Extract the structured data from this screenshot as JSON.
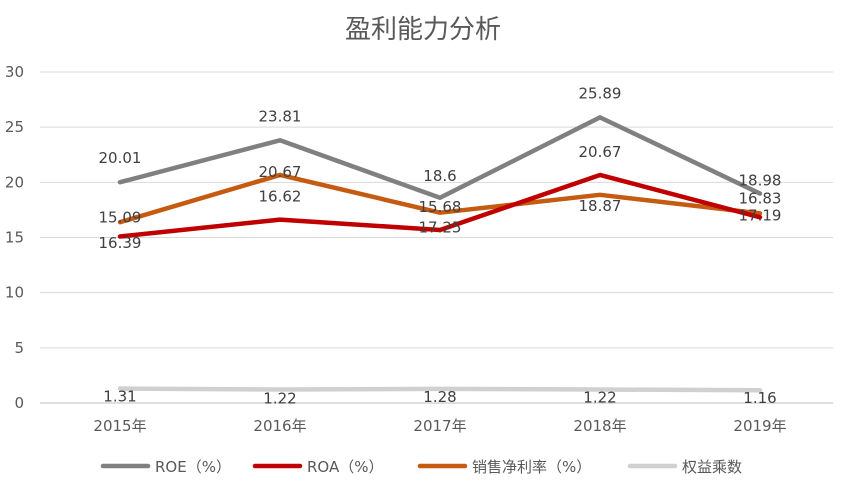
{
  "chart_data": {
    "type": "line",
    "title": "盈利能力分析",
    "categories": [
      "2015年",
      "2016年",
      "2017年",
      "2018年",
      "2019年"
    ],
    "ylim": [
      0,
      30
    ],
    "yticks": [
      0,
      5,
      10,
      15,
      20,
      25,
      30
    ],
    "grid": true,
    "legend": "bottom",
    "series": [
      {
        "name": "ROE（%）",
        "color": "#808080",
        "values": [
          20.01,
          23.81,
          18.6,
          25.89,
          18.98
        ]
      },
      {
        "name": "ROA（%）",
        "color": "#c00000",
        "values": [
          15.09,
          16.62,
          15.68,
          20.67,
          16.83
        ]
      },
      {
        "name": "销售净利率（%）",
        "color": "#c55a11",
        "values": [
          16.39,
          20.67,
          17.25,
          18.87,
          17.19
        ]
      },
      {
        "name": "权益乘数",
        "color": "#d0d0d0",
        "values": [
          1.31,
          1.22,
          1.28,
          1.22,
          1.16
        ]
      }
    ]
  }
}
